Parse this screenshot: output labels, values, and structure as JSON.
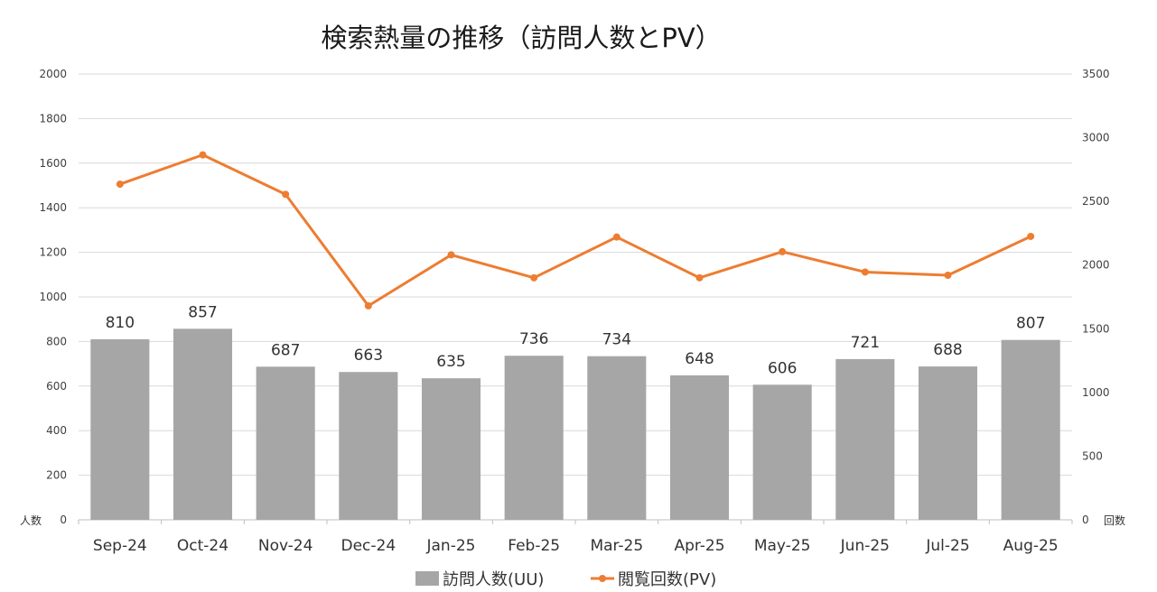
{
  "chart_data": {
    "type": "bar",
    "title": "検索熱量の推移（訪問人数とPV）",
    "categories": [
      "Sep-24",
      "Oct-24",
      "Nov-24",
      "Dec-24",
      "Jan-25",
      "Feb-25",
      "Mar-25",
      "Apr-25",
      "May-25",
      "Jun-25",
      "Jul-25",
      "Aug-25"
    ],
    "series": [
      {
        "name": "訪問人数(UU)",
        "type": "bar",
        "axis": "left",
        "color": "#a6a6a6",
        "values": [
          810,
          857,
          687,
          663,
          635,
          736,
          734,
          648,
          606,
          721,
          688,
          807
        ]
      },
      {
        "name": "閲覧回数(PV)",
        "type": "line",
        "axis": "right",
        "color": "#ed7d31",
        "values": [
          2635,
          2865,
          2555,
          1680,
          2080,
          1900,
          2220,
          1900,
          2105,
          1945,
          1920,
          2225
        ]
      }
    ],
    "ylabel": "人数",
    "y2label": "回数",
    "ylim": [
      0,
      2000
    ],
    "y2lim": [
      0,
      3500
    ],
    "yticks": [
      "0",
      "200",
      "400",
      "600",
      "800",
      "1000",
      "1200",
      "1400",
      "1600",
      "1800",
      "2000"
    ],
    "y2ticks": [
      "0",
      "500",
      "1000",
      "1500",
      "2000",
      "2500",
      "3000",
      "3500"
    ],
    "bar_data_labels": true,
    "grid": true,
    "legend_position": "bottom"
  }
}
